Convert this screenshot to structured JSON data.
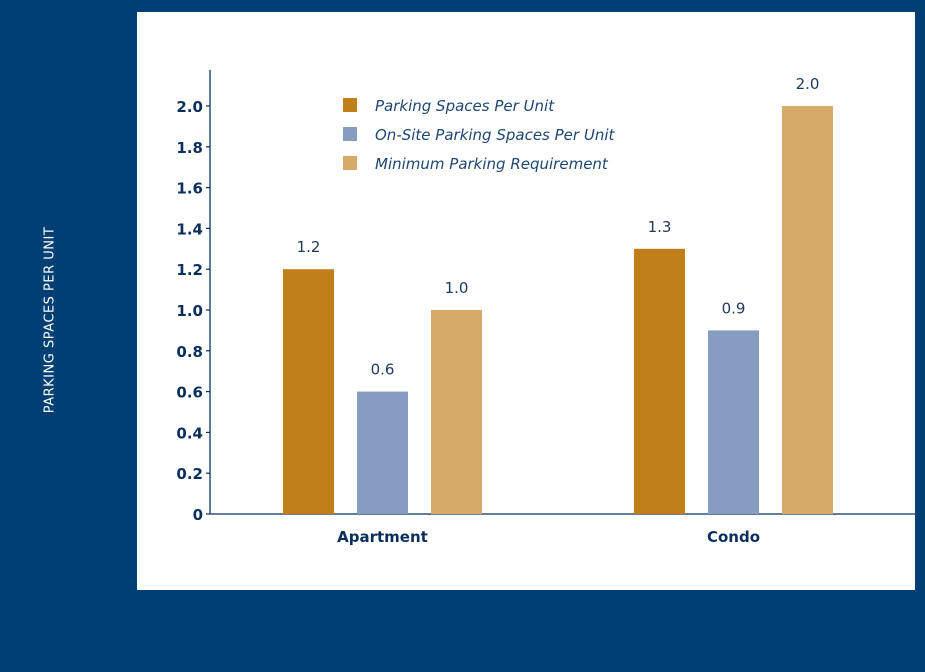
{
  "chart_data": {
    "type": "bar",
    "title": "",
    "xlabel": "",
    "ylabel": "PARKING SPACES PER UNIT",
    "categories": [
      "Apartment",
      "Condo"
    ],
    "series": [
      {
        "name": "Parking Spaces Per Unit",
        "values": [
          1.2,
          1.3
        ],
        "color": "#c17f1a"
      },
      {
        "name": "On-Site Parking Spaces Per Unit",
        "values": [
          0.6,
          0.9
        ],
        "color": "#869dc1"
      },
      {
        "name": "Minimum Parking Requirement",
        "values": [
          1.0,
          2.0
        ],
        "color": "#d6aa68"
      }
    ],
    "data_labels": [
      [
        "1.2",
        "1.3"
      ],
      [
        "0.6",
        "0.9"
      ],
      [
        "1.0",
        "2.0"
      ]
    ],
    "yticks": [
      0,
      0.2,
      0.4,
      0.6,
      0.8,
      1.0,
      1.2,
      1.4,
      1.6,
      1.8,
      2.0
    ],
    "ytick_labels": [
      "0",
      "0.2",
      "0.4",
      "0.6",
      "0.8",
      "1.0",
      "1.2",
      "1.4",
      "1.6",
      "1.8",
      "2.0"
    ],
    "ylim": [
      0,
      2.2
    ],
    "legend_position": "top-center",
    "grid": false
  },
  "colors": {
    "background": "#003f73",
    "panel": "#ffffff",
    "axis": "#0a2f5c"
  }
}
